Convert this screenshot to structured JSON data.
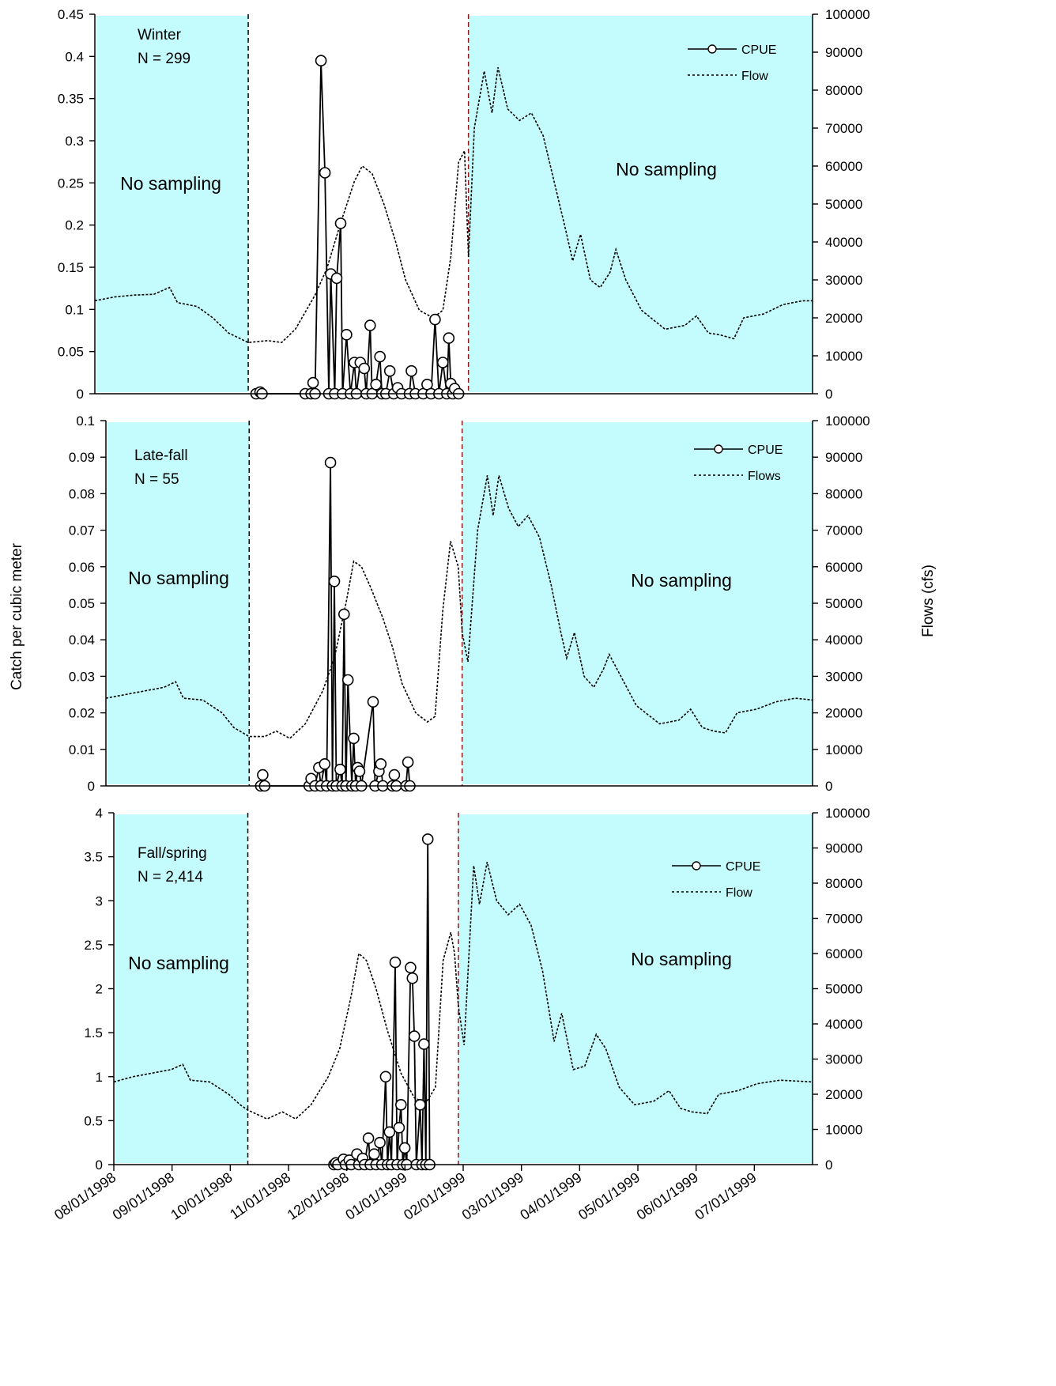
{
  "page": {
    "ylabel_left": "Catch per cubic meter",
    "ylabel_right": "Flows (cfs)",
    "x_tick_labels": [
      "08/01/1998",
      "09/01/1998",
      "10/01/1998",
      "11/01/1998",
      "12/01/1998",
      "01/01/1999",
      "02/01/1999",
      "03/01/1999",
      "04/01/1999",
      "05/01/1999",
      "06/01/1999",
      "07/01/1999"
    ],
    "no_sampling_label": "No sampling",
    "colors": {
      "shade": "#c4fbfc",
      "line": "#000000",
      "marker_fill": "#ffffff",
      "divider_left": "#000000",
      "divider_right": "#8b1a1a"
    }
  },
  "chart_data": [
    {
      "type": "line",
      "panel": "Winter",
      "annotation": [
        "Winter",
        "N = 299"
      ],
      "legend": [
        "CPUE",
        "Flow"
      ],
      "legend_position": "top-right",
      "x_range_days": [
        0,
        365
      ],
      "ylim_left": [
        0,
        0.45
      ],
      "yticks_left": [
        "0",
        "0.05",
        "0.1",
        "0.15",
        "0.2",
        "0.25",
        "0.3",
        "0.35",
        "0.4",
        "0.45"
      ],
      "ylim_right": [
        0,
        100000
      ],
      "yticks_right": [
        "0",
        "10000",
        "20000",
        "30000",
        "40000",
        "50000",
        "60000",
        "70000",
        "80000",
        "90000",
        "100000"
      ],
      "shaded_ranges": [
        [
          0,
          78
        ],
        [
          190,
          365
        ]
      ],
      "dividers": [
        78,
        190
      ],
      "flow": [
        [
          0,
          24500
        ],
        [
          10,
          25500
        ],
        [
          20,
          26000
        ],
        [
          30,
          26200
        ],
        [
          38,
          28000
        ],
        [
          42,
          24000
        ],
        [
          52,
          23000
        ],
        [
          60,
          20000
        ],
        [
          68,
          16000
        ],
        [
          78,
          13500
        ],
        [
          88,
          14000
        ],
        [
          95,
          13500
        ],
        [
          102,
          17000
        ],
        [
          112,
          26000
        ],
        [
          118,
          33000
        ],
        [
          125,
          45000
        ],
        [
          132,
          56000
        ],
        [
          136,
          60000
        ],
        [
          141,
          58000
        ],
        [
          147,
          50000
        ],
        [
          153,
          40000
        ],
        [
          158,
          30000
        ],
        [
          165,
          22000
        ],
        [
          172,
          20000
        ],
        [
          177,
          22000
        ],
        [
          181,
          36000
        ],
        [
          185,
          61000
        ],
        [
          188,
          64000
        ],
        [
          190,
          36000
        ],
        [
          193,
          70000
        ],
        [
          198,
          85000
        ],
        [
          202,
          74000
        ],
        [
          205,
          86000
        ],
        [
          210,
          75000
        ],
        [
          216,
          72000
        ],
        [
          222,
          74000
        ],
        [
          228,
          68000
        ],
        [
          234,
          55000
        ],
        [
          240,
          42000
        ],
        [
          243,
          35000
        ],
        [
          247,
          42000
        ],
        [
          252,
          30000
        ],
        [
          257,
          28000
        ],
        [
          262,
          32000
        ],
        [
          265,
          38000
        ],
        [
          270,
          30000
        ],
        [
          278,
          22000
        ],
        [
          290,
          17000
        ],
        [
          300,
          18000
        ],
        [
          306,
          20500
        ],
        [
          312,
          16000
        ],
        [
          318,
          15500
        ],
        [
          325,
          14500
        ],
        [
          330,
          20000
        ],
        [
          340,
          21000
        ],
        [
          350,
          23500
        ],
        [
          360,
          24500
        ],
        [
          365,
          24500
        ]
      ],
      "cpue": [
        [
          82,
          0
        ],
        [
          84,
          0.002
        ],
        [
          85,
          0
        ],
        [
          107,
          0
        ],
        [
          110,
          0
        ],
        [
          111,
          0.013
        ],
        [
          112,
          0
        ],
        [
          115,
          0.395
        ],
        [
          117,
          0.262
        ],
        [
          119,
          0
        ],
        [
          120,
          0.142
        ],
        [
          122,
          0
        ],
        [
          123,
          0.137
        ],
        [
          125,
          0.202
        ],
        [
          126,
          0
        ],
        [
          128,
          0.07
        ],
        [
          130,
          0
        ],
        [
          132,
          0.037
        ],
        [
          133,
          0
        ],
        [
          135,
          0.037
        ],
        [
          137,
          0.03
        ],
        [
          138,
          0
        ],
        [
          140,
          0.081
        ],
        [
          141,
          0
        ],
        [
          143,
          0.011
        ],
        [
          145,
          0.044
        ],
        [
          146,
          0
        ],
        [
          148,
          0
        ],
        [
          150,
          0.027
        ],
        [
          152,
          0
        ],
        [
          154,
          0.007
        ],
        [
          156,
          0
        ],
        [
          160,
          0
        ],
        [
          161,
          0.027
        ],
        [
          163,
          0
        ],
        [
          167,
          0
        ],
        [
          169,
          0.011
        ],
        [
          171,
          0
        ],
        [
          173,
          0.088
        ],
        [
          175,
          0
        ],
        [
          177,
          0.037
        ],
        [
          179,
          0
        ],
        [
          180,
          0.066
        ],
        [
          181,
          0.012
        ],
        [
          182,
          0
        ],
        [
          183,
          0.006
        ],
        [
          185,
          0
        ]
      ]
    },
    {
      "type": "line",
      "panel": "Late-fall",
      "annotation": [
        "Late-fall",
        "N = 55"
      ],
      "legend": [
        "CPUE",
        "Flows"
      ],
      "legend_position": "top-right",
      "x_range_days": [
        0,
        365
      ],
      "ylim_left": [
        0,
        0.1
      ],
      "yticks_left": [
        "0",
        "0.01",
        "0.02",
        "0.03",
        "0.04",
        "0.05",
        "0.06",
        "0.07",
        "0.08",
        "0.09",
        "0.1"
      ],
      "ylim_right": [
        0,
        100000
      ],
      "yticks_right": [
        "0",
        "10000",
        "20000",
        "30000",
        "40000",
        "50000",
        "60000",
        "70000",
        "80000",
        "90000",
        "100000"
      ],
      "shaded_ranges": [
        [
          0,
          74
        ],
        [
          184,
          365
        ]
      ],
      "dividers": [
        74,
        184
      ],
      "flow": [
        [
          0,
          24000
        ],
        [
          10,
          25000
        ],
        [
          20,
          26000
        ],
        [
          30,
          27000
        ],
        [
          36,
          28500
        ],
        [
          40,
          24000
        ],
        [
          50,
          23500
        ],
        [
          60,
          20000
        ],
        [
          66,
          16000
        ],
        [
          74,
          13500
        ],
        [
          82,
          13500
        ],
        [
          88,
          15000
        ],
        [
          95,
          13000
        ],
        [
          103,
          17000
        ],
        [
          112,
          26000
        ],
        [
          118,
          35000
        ],
        [
          124,
          50000
        ],
        [
          128,
          61500
        ],
        [
          132,
          60000
        ],
        [
          137,
          54000
        ],
        [
          143,
          46000
        ],
        [
          148,
          38000
        ],
        [
          153,
          28000
        ],
        [
          160,
          20000
        ],
        [
          166,
          17500
        ],
        [
          170,
          19000
        ],
        [
          174,
          48000
        ],
        [
          178,
          67000
        ],
        [
          182,
          60000
        ],
        [
          184,
          42000
        ],
        [
          187,
          34000
        ],
        [
          192,
          70000
        ],
        [
          197,
          85000
        ],
        [
          200,
          74000
        ],
        [
          203,
          85000
        ],
        [
          208,
          76000
        ],
        [
          213,
          71000
        ],
        [
          218,
          74000
        ],
        [
          224,
          68000
        ],
        [
          230,
          55000
        ],
        [
          235,
          42000
        ],
        [
          238,
          35000
        ],
        [
          242,
          42000
        ],
        [
          247,
          30000
        ],
        [
          252,
          27000
        ],
        [
          257,
          32000
        ],
        [
          260,
          36000
        ],
        [
          266,
          30000
        ],
        [
          274,
          22000
        ],
        [
          286,
          17000
        ],
        [
          296,
          18000
        ],
        [
          302,
          21000
        ],
        [
          308,
          16000
        ],
        [
          314,
          15000
        ],
        [
          320,
          14500
        ],
        [
          326,
          20000
        ],
        [
          336,
          21000
        ],
        [
          346,
          23000
        ],
        [
          356,
          24000
        ],
        [
          365,
          23500
        ]
      ],
      "cpue": [
        [
          80,
          0
        ],
        [
          81,
          0.003
        ],
        [
          82,
          0
        ],
        [
          105,
          0
        ],
        [
          106,
          0.002
        ],
        [
          108,
          0
        ],
        [
          110,
          0.005
        ],
        [
          111,
          0
        ],
        [
          113,
          0.006
        ],
        [
          114,
          0
        ],
        [
          116,
          0.0885
        ],
        [
          117,
          0
        ],
        [
          118,
          0.056
        ],
        [
          119,
          0
        ],
        [
          121,
          0.0045
        ],
        [
          122,
          0
        ],
        [
          123,
          0.047
        ],
        [
          124,
          0
        ],
        [
          125,
          0.029
        ],
        [
          127,
          0
        ],
        [
          128,
          0.013
        ],
        [
          129,
          0
        ],
        [
          130,
          0.005
        ],
        [
          131,
          0.004
        ],
        [
          132,
          0
        ],
        [
          138,
          0.023
        ],
        [
          139,
          0
        ],
        [
          141,
          0.004
        ],
        [
          142,
          0.006
        ],
        [
          143,
          0
        ],
        [
          148,
          0
        ],
        [
          149,
          0.003
        ],
        [
          150,
          0
        ],
        [
          155,
          0
        ],
        [
          156,
          0.0065
        ],
        [
          157,
          0
        ]
      ]
    },
    {
      "type": "line",
      "panel": "Fall/spring",
      "annotation": [
        "Fall/spring",
        "N = 2,414"
      ],
      "legend": [
        "CPUE",
        "Flow"
      ],
      "legend_position": "top-right",
      "x_range_days": [
        0,
        365
      ],
      "ylim_left": [
        0,
        4
      ],
      "yticks_left": [
        "0",
        "0.5",
        "1",
        "1.5",
        "2",
        "2.5",
        "3",
        "3.5",
        "4"
      ],
      "ylim_right": [
        0,
        100000
      ],
      "yticks_right": [
        "0",
        "10000",
        "20000",
        "30000",
        "40000",
        "50000",
        "60000",
        "70000",
        "80000",
        "90000",
        "100000"
      ],
      "shaded_ranges": [
        [
          0,
          70
        ],
        [
          180,
          365
        ]
      ],
      "dividers": [
        70,
        180
      ],
      "flow": [
        [
          0,
          23500
        ],
        [
          10,
          25000
        ],
        [
          20,
          26000
        ],
        [
          30,
          27000
        ],
        [
          36,
          28500
        ],
        [
          40,
          24000
        ],
        [
          50,
          23500
        ],
        [
          60,
          20000
        ],
        [
          66,
          17000
        ],
        [
          70,
          15500
        ],
        [
          80,
          13000
        ],
        [
          88,
          15000
        ],
        [
          95,
          13000
        ],
        [
          103,
          17000
        ],
        [
          112,
          25000
        ],
        [
          118,
          33000
        ],
        [
          124,
          48000
        ],
        [
          128,
          60000
        ],
        [
          132,
          58000
        ],
        [
          137,
          50000
        ],
        [
          143,
          38000
        ],
        [
          150,
          26000
        ],
        [
          157,
          19000
        ],
        [
          163,
          17500
        ],
        [
          168,
          22000
        ],
        [
          172,
          58000
        ],
        [
          176,
          66000
        ],
        [
          178,
          60000
        ],
        [
          180,
          45000
        ],
        [
          183,
          34000
        ],
        [
          188,
          85000
        ],
        [
          191,
          74000
        ],
        [
          195,
          86000
        ],
        [
          200,
          75000
        ],
        [
          206,
          71000
        ],
        [
          212,
          74000
        ],
        [
          218,
          68000
        ],
        [
          224,
          55000
        ],
        [
          230,
          35000
        ],
        [
          234,
          43000
        ],
        [
          240,
          27000
        ],
        [
          246,
          28000
        ],
        [
          252,
          37000
        ],
        [
          257,
          33000
        ],
        [
          264,
          22000
        ],
        [
          272,
          17000
        ],
        [
          282,
          18000
        ],
        [
          290,
          21000
        ],
        [
          296,
          16000
        ],
        [
          302,
          15000
        ],
        [
          310,
          14500
        ],
        [
          316,
          20000
        ],
        [
          326,
          21000
        ],
        [
          336,
          23000
        ],
        [
          348,
          24000
        ],
        [
          365,
          23500
        ]
      ],
      "cpue": [
        [
          115,
          0
        ],
        [
          116,
          0.02
        ],
        [
          117,
          0
        ],
        [
          120,
          0.06
        ],
        [
          121,
          0
        ],
        [
          123,
          0.05
        ],
        [
          124,
          0
        ],
        [
          127,
          0.12
        ],
        [
          128,
          0
        ],
        [
          130,
          0.07
        ],
        [
          131,
          0
        ],
        [
          133,
          0.3
        ],
        [
          134,
          0
        ],
        [
          136,
          0.12
        ],
        [
          137,
          0
        ],
        [
          139,
          0.25
        ],
        [
          140,
          0
        ],
        [
          142,
          1.0
        ],
        [
          143,
          0
        ],
        [
          144,
          0.37
        ],
        [
          145,
          0
        ],
        [
          147,
          2.3
        ],
        [
          148,
          0
        ],
        [
          149,
          0.42
        ],
        [
          150,
          0.68
        ],
        [
          151,
          0
        ],
        [
          152,
          0.19
        ],
        [
          153,
          0
        ],
        [
          155,
          2.24
        ],
        [
          156,
          2.12
        ],
        [
          157,
          1.46
        ],
        [
          158,
          0
        ],
        [
          160,
          0.68
        ],
        [
          161,
          0
        ],
        [
          162,
          1.37
        ],
        [
          163,
          0
        ],
        [
          164,
          3.7
        ],
        [
          165,
          0
        ]
      ]
    }
  ]
}
